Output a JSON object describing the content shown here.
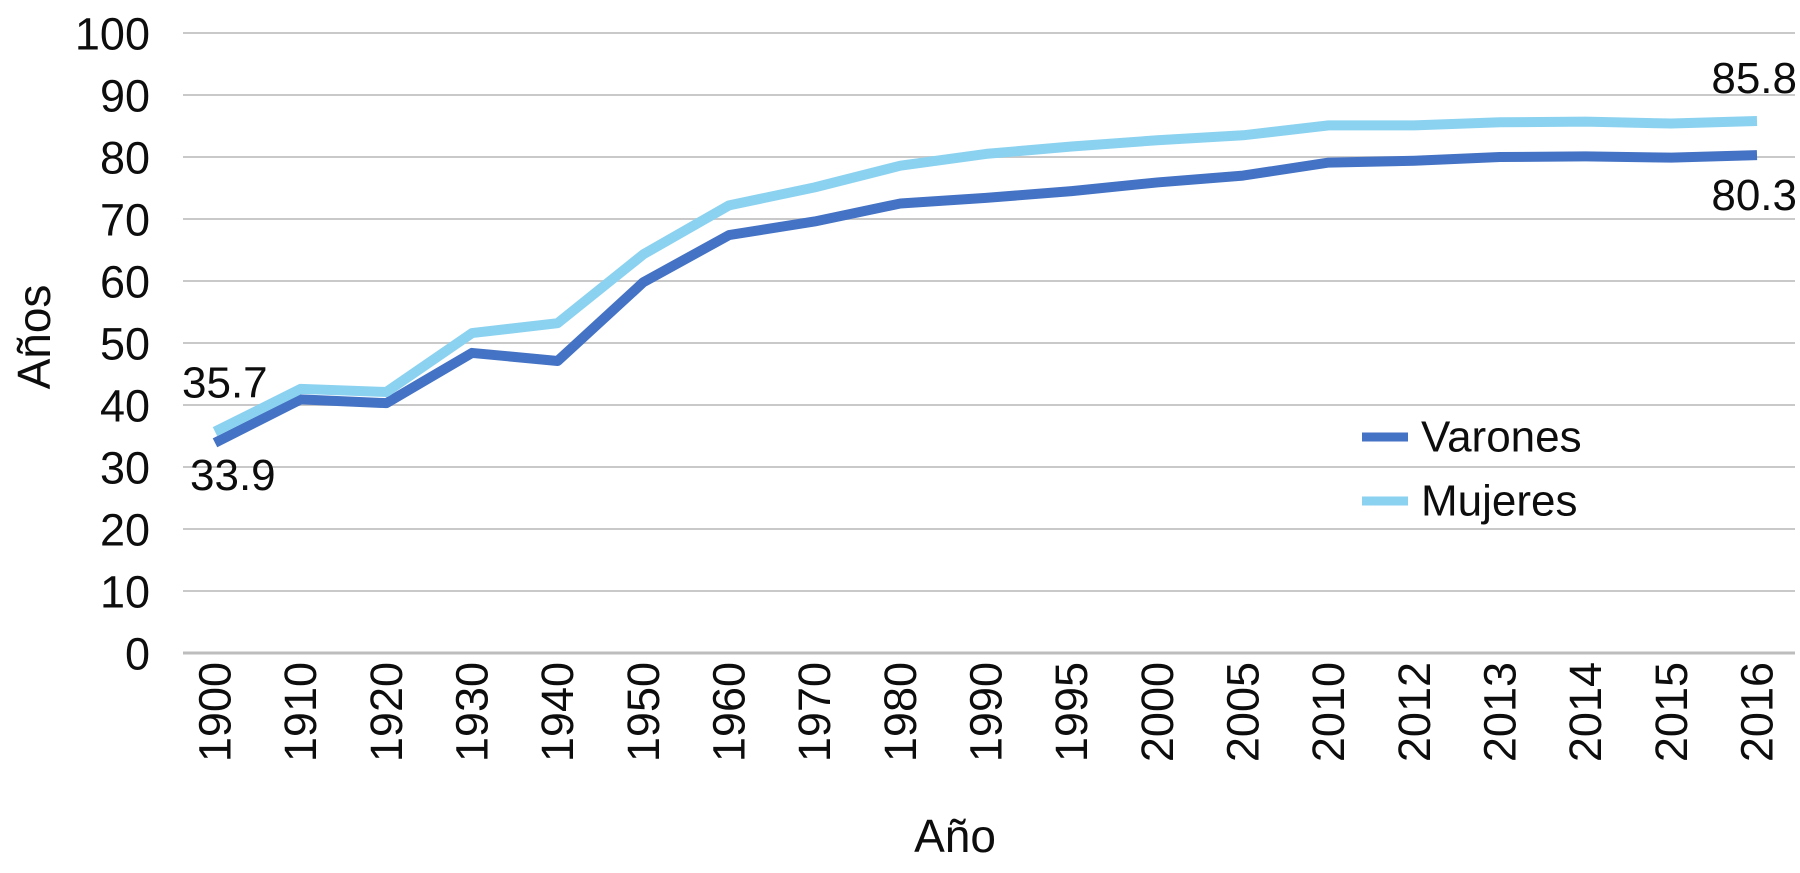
{
  "chart_data": {
    "type": "line",
    "title": "",
    "xlabel": "Año",
    "ylabel": "Años",
    "ylim": [
      0,
      100
    ],
    "yticks": [
      0,
      10,
      20,
      30,
      40,
      50,
      60,
      70,
      80,
      90,
      100
    ],
    "grid": true,
    "legend_position": "inside-right-middle",
    "categories": [
      "1900",
      "1910",
      "1920",
      "1930",
      "1940",
      "1950",
      "1960",
      "1970",
      "1980",
      "1990",
      "1995",
      "2000",
      "2005",
      "2010",
      "2012",
      "2013",
      "2014",
      "2015",
      "2016"
    ],
    "series": [
      {
        "name": "Varones",
        "color": "#4472C4",
        "values": [
          33.9,
          40.9,
          40.3,
          48.4,
          47.1,
          59.8,
          67.4,
          69.6,
          72.5,
          73.4,
          74.5,
          75.9,
          77.0,
          79.1,
          79.4,
          80.0,
          80.1,
          79.9,
          80.3
        ]
      },
      {
        "name": "Mujeres",
        "color": "#8BD2F0",
        "values": [
          35.7,
          42.6,
          42.1,
          51.6,
          53.2,
          64.3,
          72.2,
          75.1,
          78.6,
          80.5,
          81.7,
          82.7,
          83.5,
          85.1,
          85.1,
          85.6,
          85.7,
          85.4,
          85.8
        ]
      }
    ],
    "point_labels": [
      {
        "series": "Mujeres",
        "category": "1900",
        "text": "35.7",
        "position": "above-left"
      },
      {
        "series": "Varones",
        "category": "1900",
        "text": "33.9",
        "position": "below-left"
      },
      {
        "series": "Mujeres",
        "category": "2016",
        "text": "85.8",
        "position": "above-right"
      },
      {
        "series": "Varones",
        "category": "2016",
        "text": "80.3",
        "position": "below-right"
      }
    ]
  },
  "colors": {
    "gridline": "#C9C9C9",
    "axis_line": "#BDBDBD",
    "text": "#0D0D0D",
    "background": "#FFFFFF"
  }
}
